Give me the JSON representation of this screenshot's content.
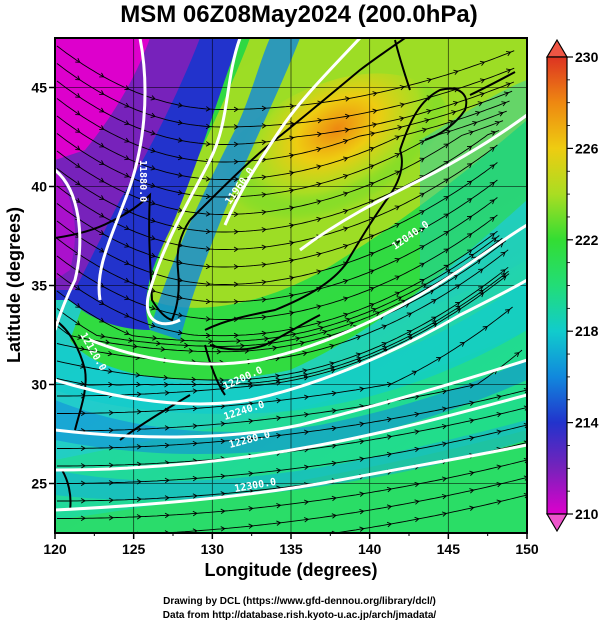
{
  "title": "MSM 06Z08May2024 (200.0hPa)",
  "x_axis": {
    "label": "Longitude (degrees)",
    "ticks": [
      "120",
      "125",
      "130",
      "135",
      "140",
      "145",
      "150"
    ]
  },
  "y_axis": {
    "label": "Latitude  (degrees)",
    "ticks": [
      "25",
      "30",
      "35",
      "40",
      "45"
    ]
  },
  "colorbar": {
    "ticks": [
      "210",
      "214",
      "218",
      "222",
      "226",
      "230"
    ],
    "colors": [
      "#dd00cc",
      "#7722bb",
      "#2233cc",
      "#1188dd",
      "#11cccc",
      "#22dd77",
      "#33dd33",
      "#aadd22",
      "#eecc11",
      "#ee8811",
      "#dd3322"
    ]
  },
  "contour_labels": [
    "11880.0",
    "11960.0",
    "12040.0",
    "12120.0",
    "12200.0",
    "12240.0",
    "12280.0",
    "12300.0"
  ],
  "credits": {
    "line1": "Drawing by DCL (https://www.gfd-dennou.org/library/dcl/)",
    "line2": "Data from http://database.rish.kyoto-u.ac.jp/arch/jmadata/"
  },
  "chart_data": {
    "type": "heatmap",
    "title": "MSM 06Z08May2024 (200.0hPa)",
    "xlabel": "Longitude (degrees)",
    "ylabel": "Latitude  (degrees)",
    "xlim": [
      120,
      150
    ],
    "ylim": [
      22.5,
      47.5
    ],
    "colorbar_range": [
      210,
      230
    ],
    "colorbar_ticks": [
      210,
      214,
      218,
      222,
      226,
      230
    ],
    "overlays": [
      "streamlines",
      "geopotential height contours"
    ],
    "contour_levels": [
      11880,
      11960,
      12040,
      12120,
      12200,
      12240,
      12280,
      12300
    ],
    "grid": true,
    "legend": "right"
  }
}
